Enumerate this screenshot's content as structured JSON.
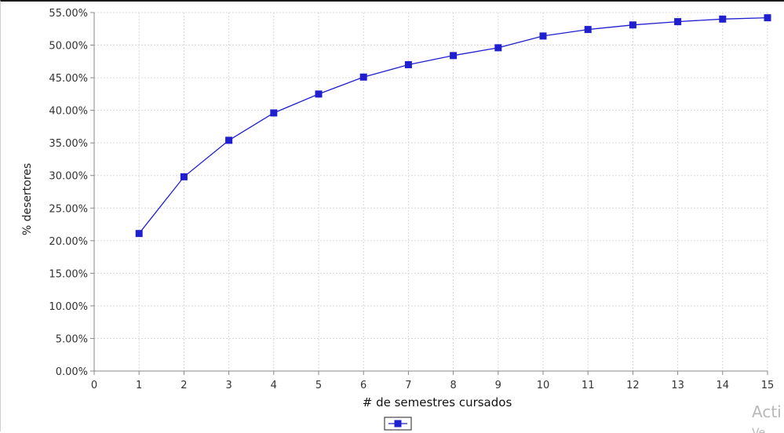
{
  "chart_data": {
    "type": "line",
    "xlabel": "# de semestres cursados",
    "ylabel": "% desertores",
    "xlim": [
      0,
      15
    ],
    "ylim": [
      0,
      55
    ],
    "x_ticks": [
      0,
      1,
      2,
      3,
      4,
      5,
      6,
      7,
      8,
      9,
      10,
      11,
      12,
      13,
      14,
      15
    ],
    "y_ticks": [
      "0.00%",
      "5.00%",
      "10.00%",
      "15.00%",
      "20.00%",
      "25.00%",
      "30.00%",
      "35.00%",
      "40.00%",
      "45.00%",
      "50.00%",
      "55.00%"
    ],
    "grid": true,
    "legend": "bottom-center",
    "series": [
      {
        "color": "#1f1fd0",
        "marker": "square",
        "x": [
          1,
          2,
          3,
          4,
          5,
          6,
          7,
          8,
          9,
          10,
          11,
          12,
          13,
          14,
          15
        ],
        "y": [
          21.1,
          29.8,
          35.4,
          39.6,
          42.5,
          45.1,
          47.0,
          48.4,
          49.6,
          51.4,
          52.4,
          53.1,
          53.6,
          54.0,
          54.2
        ]
      }
    ]
  },
  "watermark": {
    "text": "Acti",
    "subtext": "Ve..."
  }
}
